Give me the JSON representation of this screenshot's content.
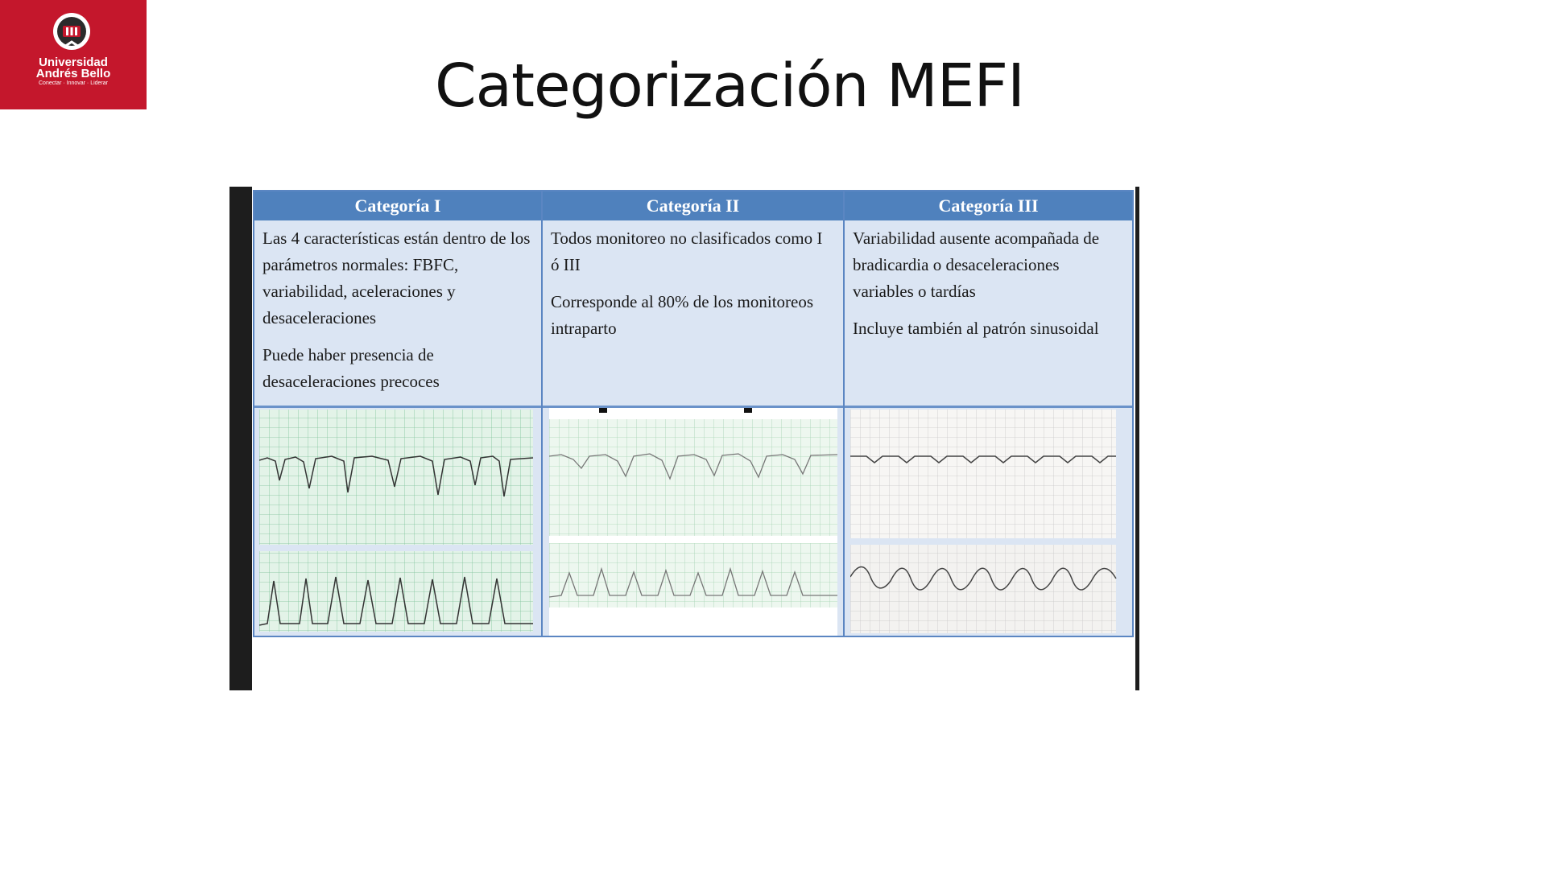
{
  "logo": {
    "line1": "Universidad",
    "line2": "Andrés Bello",
    "tagline": "Conectar · Innovar · Liderar",
    "color": "#c4172c"
  },
  "slide": {
    "title": "Categorización MEFI"
  },
  "table": {
    "header_color": "#4f81bd",
    "columns": [
      {
        "header": "Categoría I",
        "paragraphs": [
          "Las 4 características están dentro de los parámetros normales: FBFC, variabilidad, aceleraciones y desaceleraciones",
          "Puede haber presencia de desaceleraciones precoces"
        ]
      },
      {
        "header": "Categoría II",
        "paragraphs": [
          "Todos monitoreo no clasificados como I ó III",
          "Corresponde al 80% de los monitoreos intraparto"
        ]
      },
      {
        "header": "Categoría III",
        "paragraphs": [
          "Variabilidad ausente acompañada de bradicardia o desaceleraciones variables o tardías",
          "Incluye también al patrón sinusoidal"
        ]
      }
    ]
  }
}
